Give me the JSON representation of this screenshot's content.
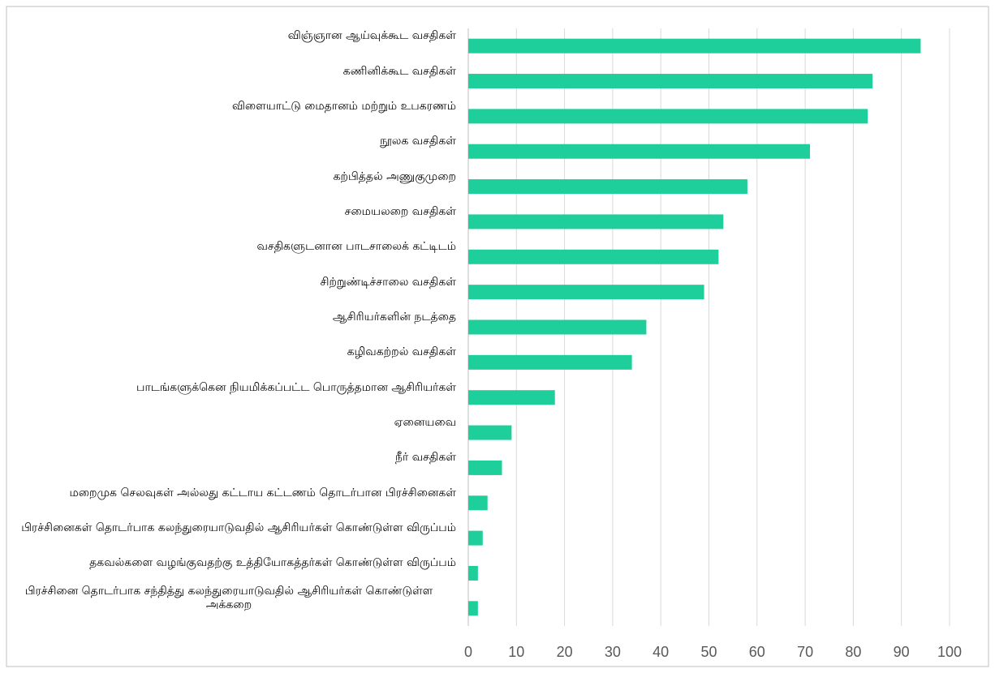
{
  "chart_data": {
    "type": "bar",
    "orientation": "horizontal",
    "categories": [
      "விஞ்ஞான ஆய்வுக்கூட வசதிகள்",
      "கணினிக்கூட வசதிகள்",
      "விளையாட்டு மைதானம் மற்றும் உபகரணம்",
      "நூலக வசதிகள்",
      "கற்பித்தல் அணுகுமுறை",
      "சமையலறை வசதிகள்",
      "வசதிகளுடனான பாடசாலைக் கட்டிடம்",
      "சிற்றுண்டிச்சாலை வசதிகள்",
      "ஆசிரியர்களின் நடத்தை",
      "கழிவகற்றல் வசதிகள்",
      "பாடங்களுக்கென நியமிக்கப்பட்ட பொருத்தமான ஆசிரியர்கள்",
      "ஏனையவை",
      "நீர் வசதிகள்",
      "மறைமுக செலவுகள் அல்லது கட்டாய கட்டணம் தொடர்பான பிரச்சினைகள்",
      "பிரச்சினைகள் தொடர்பாக கலந்துரையாடுவதில் ஆசிரியர்கள் கொண்டுள்ள விருப்பம்",
      "தகவல்களை வழங்குவதற்கு உத்தியோகத்தர்கள் கொண்டுள்ள விருப்பம்",
      "பிரச்சினை தொடர்பாக சந்தித்து கலந்துரையாடுவதில் ஆசிரியர்கள் கொண்டுள்ள அக்கறை"
    ],
    "values": [
      94,
      84,
      83,
      71,
      58,
      53,
      52,
      49,
      37,
      34,
      18,
      9,
      7,
      4,
      3,
      2,
      2
    ],
    "color": "#1ecf9b",
    "xlim": [
      0,
      100
    ],
    "xticks": [
      0,
      10,
      20,
      30,
      40,
      50,
      60,
      70,
      80,
      90,
      100
    ],
    "grid": true
  }
}
